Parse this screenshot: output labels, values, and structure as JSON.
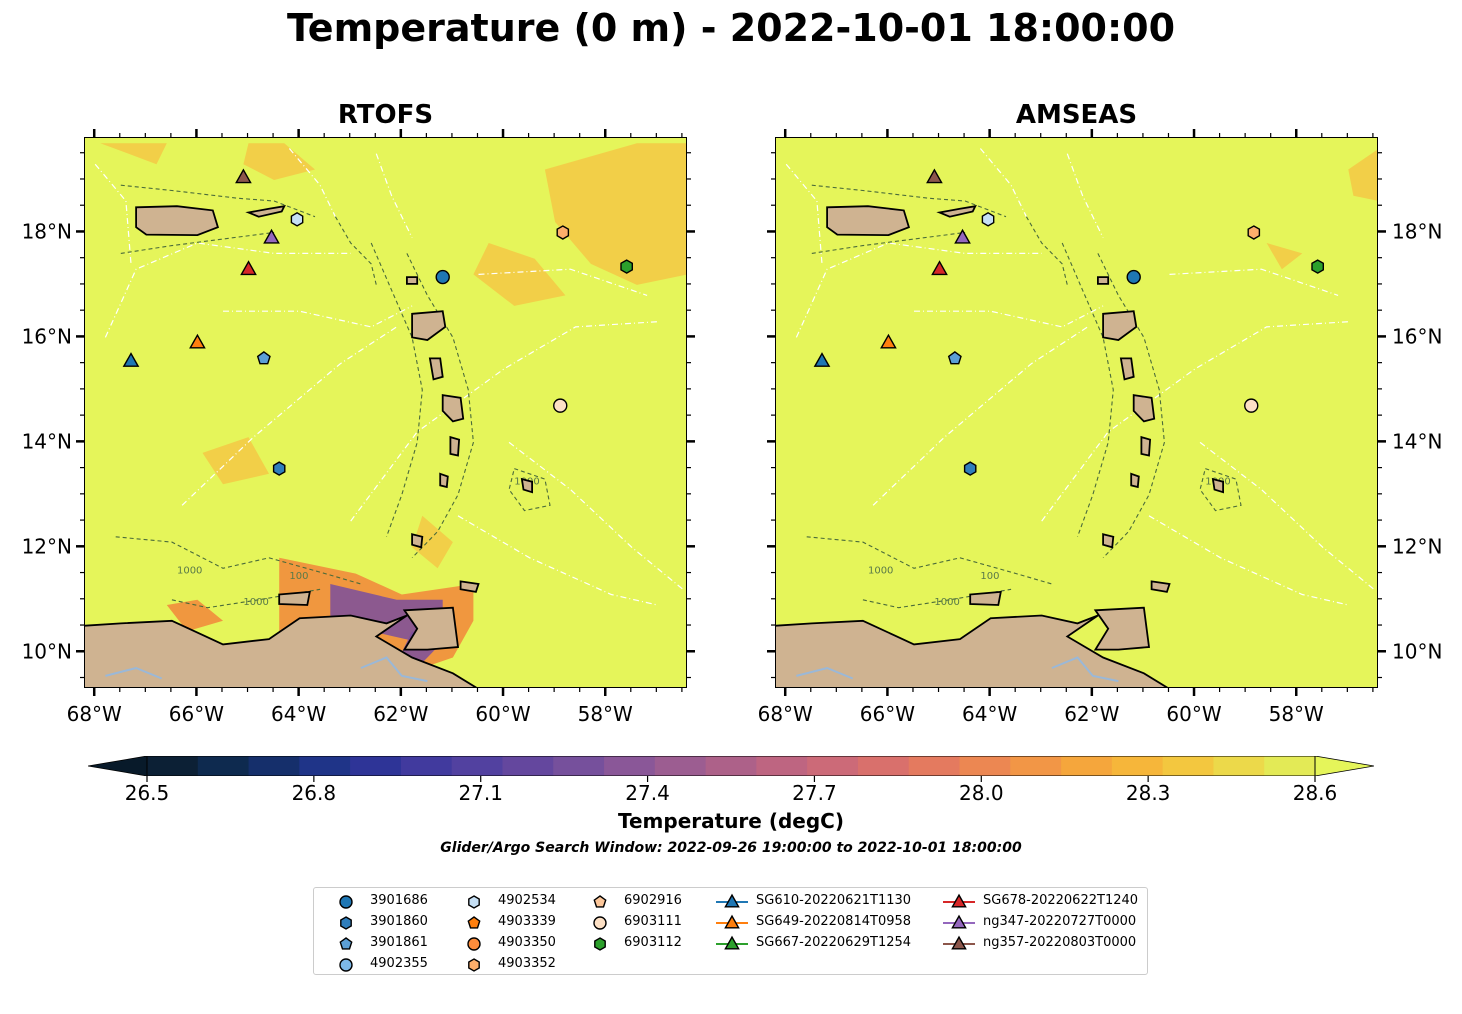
{
  "figure": {
    "title": "Temperature (0 m) - 2022-10-01 18:00:00"
  },
  "panels": [
    {
      "title": "RTOFS"
    },
    {
      "title": "AMSEAS"
    }
  ],
  "map": {
    "lon_range": [
      -68.2,
      -56.4
    ],
    "lat_range": [
      9.3,
      19.8
    ],
    "x_ticks": [
      "68°W",
      "66°W",
      "64°W",
      "62°W",
      "60°W",
      "58°W"
    ],
    "y_ticks": [
      "18°N",
      "16°N",
      "14°N",
      "12°N",
      "10°N"
    ],
    "land_color": "#cfb391",
    "ocean_base_color": "#e5f55a",
    "contour_labels": [
      "100",
      "1000"
    ]
  },
  "colorbar": {
    "label": "Temperature (degC)",
    "ticks": [
      "26.5",
      "26.8",
      "27.1",
      "27.4",
      "27.7",
      "28.0",
      "28.3",
      "28.6"
    ],
    "range": [
      26.5,
      28.6
    ],
    "extend": "both",
    "colors": [
      "#0c2035",
      "#0e2a4f",
      "#152f6b",
      "#1f3488",
      "#2e3497",
      "#413a9e",
      "#5241a0",
      "#64479e",
      "#76509c",
      "#8a5798",
      "#9c5d91",
      "#ad6189",
      "#be6581",
      "#cc6a78",
      "#d9706c",
      "#e47a5f",
      "#ec8752",
      "#f29646",
      "#f5a63c",
      "#f6b63a",
      "#f3c73f",
      "#ecd94a",
      "#e3ea56"
    ],
    "extend_low_color": "#081a2a",
    "extend_high_color": "#e5f55a"
  },
  "search_window": "Glider/Argo Search Window: 2022-09-26 19:00:00 to 2022-10-01 18:00:00",
  "legend": {
    "items": [
      {
        "label": "3901686",
        "marker": "circle",
        "color": "#1f77b4",
        "lon": -61.2,
        "lat": 17.15
      },
      {
        "label": "3901860",
        "marker": "hexagon",
        "color": "#2f7ebc",
        "lon": -64.4,
        "lat": 13.5
      },
      {
        "label": "3901861",
        "marker": "pentagon",
        "color": "#5c9fd6",
        "lon": -64.7,
        "lat": 15.6
      },
      {
        "label": "4902355",
        "marker": "circle",
        "color": "#7db8e8",
        "lon": null,
        "lat": null
      },
      {
        "label": "4902534",
        "marker": "hexagon",
        "color": "#c6e0f5",
        "lon": -64.05,
        "lat": 18.25
      },
      {
        "label": "4903339",
        "marker": "pentagon",
        "color": "#ff7f0e",
        "lon": null,
        "lat": null
      },
      {
        "label": "4903350",
        "marker": "circle",
        "color": "#fd8d3c",
        "lon": null,
        "lat": null
      },
      {
        "label": "4903352",
        "marker": "hexagon",
        "color": "#fdae6b",
        "lon": -58.85,
        "lat": 18.0
      },
      {
        "label": "6902916",
        "marker": "pentagon",
        "color": "#fdc79a",
        "lon": null,
        "lat": null
      },
      {
        "label": "6903111",
        "marker": "circle",
        "color": "#fde0c5",
        "lon": -58.9,
        "lat": 14.7
      },
      {
        "label": "6903112",
        "marker": "hexagon",
        "color": "#2ca02c",
        "lon": -57.6,
        "lat": 17.35
      },
      {
        "label": "SG610-20220621T1130",
        "marker": "triangle",
        "color": "#1f77b4",
        "lon": -67.3,
        "lat": 15.55
      },
      {
        "label": "SG649-20220814T0958",
        "marker": "triangle",
        "color": "#ff7f0e",
        "lon": -66.0,
        "lat": 15.9
      },
      {
        "label": "SG667-20220629T1254",
        "marker": "triangle",
        "color": "#2ca02c",
        "lon": null,
        "lat": null
      },
      {
        "label": "SG678-20220622T1240",
        "marker": "triangle",
        "color": "#d62728",
        "lon": -65.0,
        "lat": 17.3
      },
      {
        "label": "ng347-20220727T0000",
        "marker": "triangle",
        "color": "#9467bd",
        "lon": -64.55,
        "lat": 17.9
      },
      {
        "label": "ng357-20220803T0000",
        "marker": "triangle",
        "color": "#8c564b",
        "lon": -65.1,
        "lat": 19.05
      }
    ]
  }
}
